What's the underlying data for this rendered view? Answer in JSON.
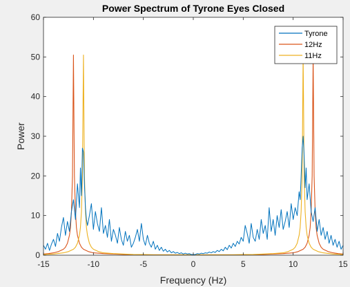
{
  "chart_data": {
    "type": "line",
    "title": "Power Spectrum of Tyrone Eyes Closed",
    "xlabel": "Frequency (Hz)",
    "ylabel": "Power",
    "xlim": [
      -15,
      15
    ],
    "ylim": [
      0,
      60
    ],
    "xticks": [
      -15,
      -10,
      -5,
      0,
      5,
      10,
      15
    ],
    "yticks": [
      0,
      10,
      20,
      30,
      40,
      50,
      60
    ],
    "grid": false,
    "legend_position": "top-right",
    "series": [
      {
        "name": "Tyrone",
        "color": "#0072BD",
        "x": [
          -15.0,
          -14.8,
          -14.6,
          -14.4,
          -14.2,
          -14.0,
          -13.8,
          -13.6,
          -13.4,
          -13.2,
          -13.0,
          -12.8,
          -12.6,
          -12.4,
          -12.2,
          -12.0,
          -11.8,
          -11.6,
          -11.4,
          -11.3,
          -11.2,
          -11.1,
          -11.0,
          -10.9,
          -10.8,
          -10.7,
          -10.6,
          -10.4,
          -10.2,
          -10.0,
          -9.8,
          -9.6,
          -9.4,
          -9.2,
          -9.0,
          -8.8,
          -8.6,
          -8.4,
          -8.2,
          -8.0,
          -7.8,
          -7.6,
          -7.4,
          -7.2,
          -7.0,
          -6.8,
          -6.6,
          -6.4,
          -6.2,
          -6.0,
          -5.8,
          -5.6,
          -5.4,
          -5.2,
          -5.0,
          -4.8,
          -4.6,
          -4.4,
          -4.2,
          -4.0,
          -3.8,
          -3.6,
          -3.4,
          -3.2,
          -3.0,
          -2.8,
          -2.6,
          -2.4,
          -2.2,
          -2.0,
          -1.8,
          -1.6,
          -1.4,
          -1.2,
          -1.0,
          -0.8,
          -0.6,
          -0.4,
          -0.2,
          0.0,
          0.2,
          0.4,
          0.6,
          0.8,
          1.0,
          1.2,
          1.4,
          1.6,
          1.8,
          2.0,
          2.2,
          2.4,
          2.6,
          2.8,
          3.0,
          3.2,
          3.4,
          3.6,
          3.8,
          4.0,
          4.2,
          4.4,
          4.6,
          4.8,
          5.0,
          5.2,
          5.4,
          5.6,
          5.8,
          6.0,
          6.2,
          6.4,
          6.6,
          6.8,
          7.0,
          7.2,
          7.4,
          7.6,
          7.8,
          8.0,
          8.2,
          8.4,
          8.6,
          8.8,
          9.0,
          9.2,
          9.4,
          9.6,
          9.8,
          10.0,
          10.2,
          10.4,
          10.6,
          10.7,
          10.8,
          10.9,
          11.0,
          11.1,
          11.2,
          11.3,
          11.4,
          11.6,
          11.8,
          12.0,
          12.2,
          12.4,
          12.6,
          12.8,
          13.0,
          13.2,
          13.4,
          13.6,
          13.8,
          14.0,
          14.2,
          14.4,
          14.6,
          14.8,
          15.0
        ],
        "y": [
          2.5,
          1.5,
          3.0,
          1.2,
          2.8,
          4.0,
          2.2,
          5.5,
          3.5,
          7.0,
          9.5,
          5.0,
          8.5,
          6.0,
          11.0,
          14.0,
          9.0,
          18.0,
          12.0,
          22.0,
          15.0,
          27.0,
          26.0,
          18.0,
          12.0,
          9.0,
          7.5,
          10.0,
          13.0,
          6.5,
          11.0,
          8.0,
          6.0,
          12.0,
          5.5,
          7.5,
          4.5,
          9.0,
          3.5,
          6.5,
          5.0,
          3.0,
          7.0,
          4.0,
          2.5,
          6.0,
          3.5,
          5.0,
          2.0,
          3.0,
          4.5,
          6.5,
          3.5,
          8.0,
          4.0,
          2.5,
          5.0,
          3.0,
          2.0,
          3.5,
          1.5,
          2.5,
          1.2,
          2.0,
          1.0,
          1.5,
          0.8,
          1.2,
          0.6,
          0.9,
          0.5,
          0.7,
          0.4,
          0.6,
          0.3,
          0.5,
          0.3,
          0.4,
          0.2,
          0.1,
          0.2,
          0.4,
          0.3,
          0.5,
          0.4,
          0.6,
          0.5,
          0.8,
          0.6,
          0.9,
          0.7,
          1.2,
          0.9,
          1.5,
          1.1,
          2.0,
          1.4,
          2.5,
          1.8,
          3.0,
          2.2,
          3.5,
          2.8,
          4.5,
          3.5,
          7.5,
          5.5,
          3.0,
          8.0,
          4.5,
          3.5,
          6.5,
          4.0,
          9.0,
          5.5,
          7.5,
          4.0,
          12.0,
          6.0,
          9.0,
          5.0,
          10.0,
          7.0,
          11.5,
          6.5,
          8.5,
          11.0,
          7.0,
          13.0,
          9.0,
          12.0,
          10.0,
          16.0,
          14.0,
          20.0,
          27.0,
          30.0,
          25.0,
          17.0,
          22.0,
          14.0,
          18.0,
          11.0,
          8.5,
          12.0,
          6.0,
          9.0,
          5.0,
          7.0,
          4.0,
          6.0,
          3.0,
          5.0,
          2.5,
          4.0,
          2.0,
          3.5,
          1.5,
          2.5
        ]
      },
      {
        "name": "12Hz",
        "color": "#D95319",
        "peaks": [
          -12,
          12
        ],
        "peak_height": 50.5,
        "x": [
          -15.0,
          -14.5,
          -14.0,
          -13.5,
          -13.0,
          -12.8,
          -12.6,
          -12.4,
          -12.3,
          -12.2,
          -12.1,
          -12.05,
          -12.0,
          -11.95,
          -11.9,
          -11.8,
          -11.7,
          -11.6,
          -11.4,
          -11.2,
          -11.0,
          -10.5,
          -10.0,
          -9.0,
          -8.0,
          -7.0,
          -6.0,
          -5.0,
          -4.0,
          -3.0,
          -2.0,
          -1.0,
          0.0,
          1.0,
          2.0,
          3.0,
          4.0,
          5.0,
          6.0,
          7.0,
          8.0,
          9.0,
          10.0,
          10.5,
          11.0,
          11.2,
          11.4,
          11.6,
          11.7,
          11.8,
          11.9,
          11.95,
          12.0,
          12.05,
          12.1,
          12.2,
          12.3,
          12.4,
          12.6,
          12.8,
          13.0,
          13.5,
          14.0,
          14.5,
          15.0
        ],
        "y": [
          0.3,
          0.4,
          0.6,
          0.9,
          1.5,
          2.0,
          3.0,
          5.0,
          7.0,
          11.0,
          20.0,
          35.0,
          50.5,
          35.0,
          20.0,
          11.0,
          7.0,
          5.0,
          3.0,
          2.0,
          1.5,
          0.9,
          0.6,
          0.4,
          0.3,
          0.2,
          0.15,
          0.1,
          0.1,
          0.1,
          0.1,
          0.1,
          0.1,
          0.1,
          0.1,
          0.1,
          0.1,
          0.1,
          0.15,
          0.2,
          0.3,
          0.4,
          0.6,
          0.9,
          1.5,
          2.0,
          3.0,
          5.0,
          7.0,
          11.0,
          20.0,
          35.0,
          50.5,
          35.0,
          20.0,
          11.0,
          7.0,
          5.0,
          3.0,
          2.0,
          1.5,
          0.9,
          0.6,
          0.4,
          0.3
        ]
      },
      {
        "name": "11Hz",
        "color": "#EDB120",
        "peaks": [
          -11,
          11
        ],
        "peak_height": 50.5,
        "x": [
          -15.0,
          -14.0,
          -13.0,
          -12.5,
          -12.0,
          -11.8,
          -11.6,
          -11.4,
          -11.3,
          -11.2,
          -11.1,
          -11.05,
          -11.0,
          -10.95,
          -10.9,
          -10.8,
          -10.7,
          -10.6,
          -10.4,
          -10.2,
          -10.0,
          -9.5,
          -9.0,
          -8.0,
          -7.0,
          -6.0,
          -5.0,
          -4.0,
          -3.0,
          -2.0,
          -1.0,
          0.0,
          1.0,
          2.0,
          3.0,
          4.0,
          5.0,
          6.0,
          7.0,
          8.0,
          9.0,
          9.5,
          10.0,
          10.2,
          10.4,
          10.6,
          10.7,
          10.8,
          10.9,
          10.95,
          11.0,
          11.05,
          11.1,
          11.2,
          11.3,
          11.4,
          11.6,
          11.8,
          12.0,
          12.5,
          13.0,
          14.0,
          15.0
        ],
        "y": [
          0.2,
          0.3,
          0.6,
          0.9,
          1.5,
          2.0,
          3.0,
          5.0,
          7.0,
          11.0,
          20.0,
          35.0,
          50.5,
          35.0,
          20.0,
          11.0,
          7.0,
          5.0,
          3.0,
          2.0,
          1.5,
          0.9,
          0.6,
          0.4,
          0.3,
          0.2,
          0.15,
          0.1,
          0.1,
          0.1,
          0.1,
          0.1,
          0.1,
          0.1,
          0.1,
          0.1,
          0.15,
          0.2,
          0.3,
          0.4,
          0.6,
          0.9,
          1.5,
          2.0,
          3.0,
          5.0,
          7.0,
          11.0,
          20.0,
          35.0,
          50.5,
          35.0,
          20.0,
          11.0,
          7.0,
          5.0,
          3.0,
          2.0,
          1.5,
          0.9,
          0.6,
          0.3,
          0.2
        ]
      }
    ]
  }
}
